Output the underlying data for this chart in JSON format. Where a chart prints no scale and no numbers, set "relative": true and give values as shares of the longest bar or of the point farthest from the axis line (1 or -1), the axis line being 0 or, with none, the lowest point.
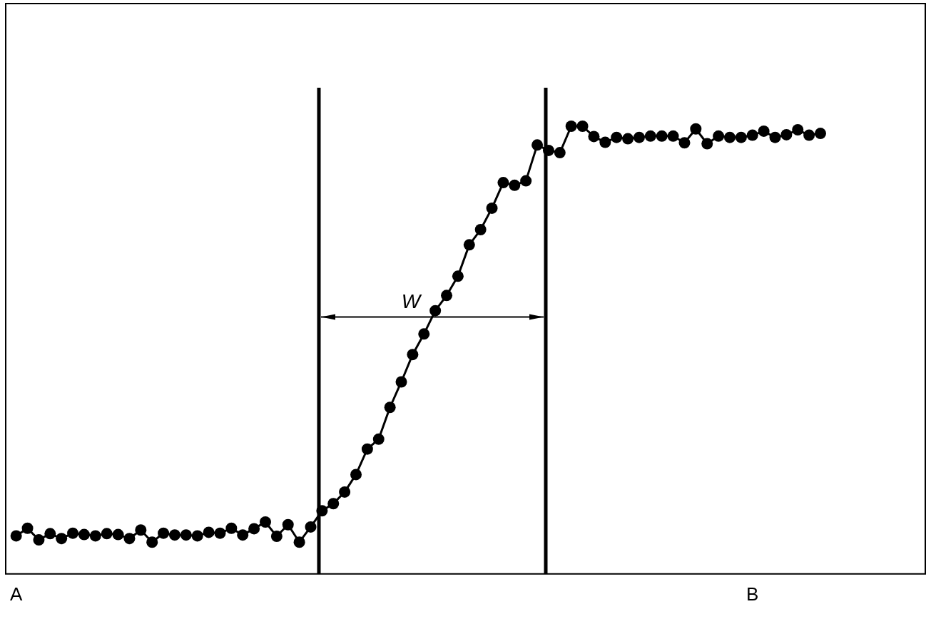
{
  "chart_data": {
    "type": "line",
    "relative": true,
    "marker": "circle",
    "line_style": "solid",
    "categories": [
      "A",
      null,
      null,
      null,
      null,
      null,
      null,
      null,
      null,
      null,
      null,
      null,
      null,
      null,
      null,
      null,
      null,
      null,
      null,
      null,
      null,
      null,
      null,
      null,
      null,
      null,
      null,
      null,
      null,
      null,
      null,
      null,
      null,
      null,
      null,
      null,
      null,
      null,
      null,
      null,
      null,
      null,
      null,
      null,
      null,
      null,
      null,
      null,
      null,
      null,
      null,
      null,
      null,
      null,
      null,
      null,
      null,
      null,
      null,
      null,
      null,
      null,
      null,
      null,
      null,
      "B",
      null,
      null,
      null,
      null,
      null,
      null
    ],
    "series": [
      {
        "color": "#000000",
        "values": [
          0.085,
          0.102,
          0.076,
          0.09,
          0.079,
          0.091,
          0.088,
          0.085,
          0.09,
          0.088,
          0.079,
          0.098,
          0.071,
          0.091,
          0.087,
          0.087,
          0.085,
          0.093,
          0.091,
          0.102,
          0.087,
          0.101,
          0.116,
          0.084,
          0.11,
          0.071,
          0.105,
          0.141,
          0.157,
          0.183,
          0.222,
          0.279,
          0.301,
          0.372,
          0.429,
          0.49,
          0.536,
          0.588,
          0.622,
          0.665,
          0.735,
          0.769,
          0.817,
          0.874,
          0.868,
          0.878,
          0.958,
          0.946,
          0.941,
          1,
          1,
          0.977,
          0.964,
          0.975,
          0.972,
          0.975,
          0.978,
          0.978,
          0.978,
          0.963,
          0.994,
          0.961,
          0.978,
          0.975,
          0.975,
          0.98,
          0.989,
          0.975,
          0.981,
          0.992,
          0.98,
          0.984
        ]
      }
    ],
    "annotations": [
      "W"
    ]
  }
}
